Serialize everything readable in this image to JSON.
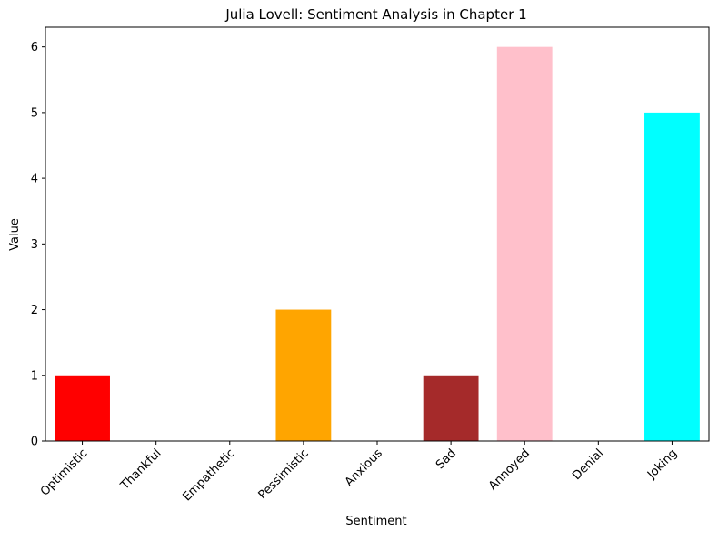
{
  "chart_data": {
    "type": "bar",
    "title": "Julia Lovell: Sentiment Analysis in Chapter 1",
    "xlabel": "Sentiment",
    "ylabel": "Value",
    "categories": [
      "Optimistic",
      "Thankful",
      "Empathetic",
      "Pessimistic",
      "Anxious",
      "Sad",
      "Annoyed",
      "Denial",
      "Joking"
    ],
    "values": [
      1,
      0,
      0,
      2,
      0,
      1,
      6,
      0,
      5
    ],
    "colors": [
      "#ff0000",
      "#008000",
      "#0000ff",
      "#ffa500",
      "#800080",
      "#a52a2a",
      "#ffc0cb",
      "#808080",
      "#00ffff"
    ],
    "ylim": [
      0,
      6.3
    ],
    "yticks": [
      0,
      1,
      2,
      3,
      4,
      5,
      6
    ],
    "grid": false,
    "legend": "none"
  }
}
